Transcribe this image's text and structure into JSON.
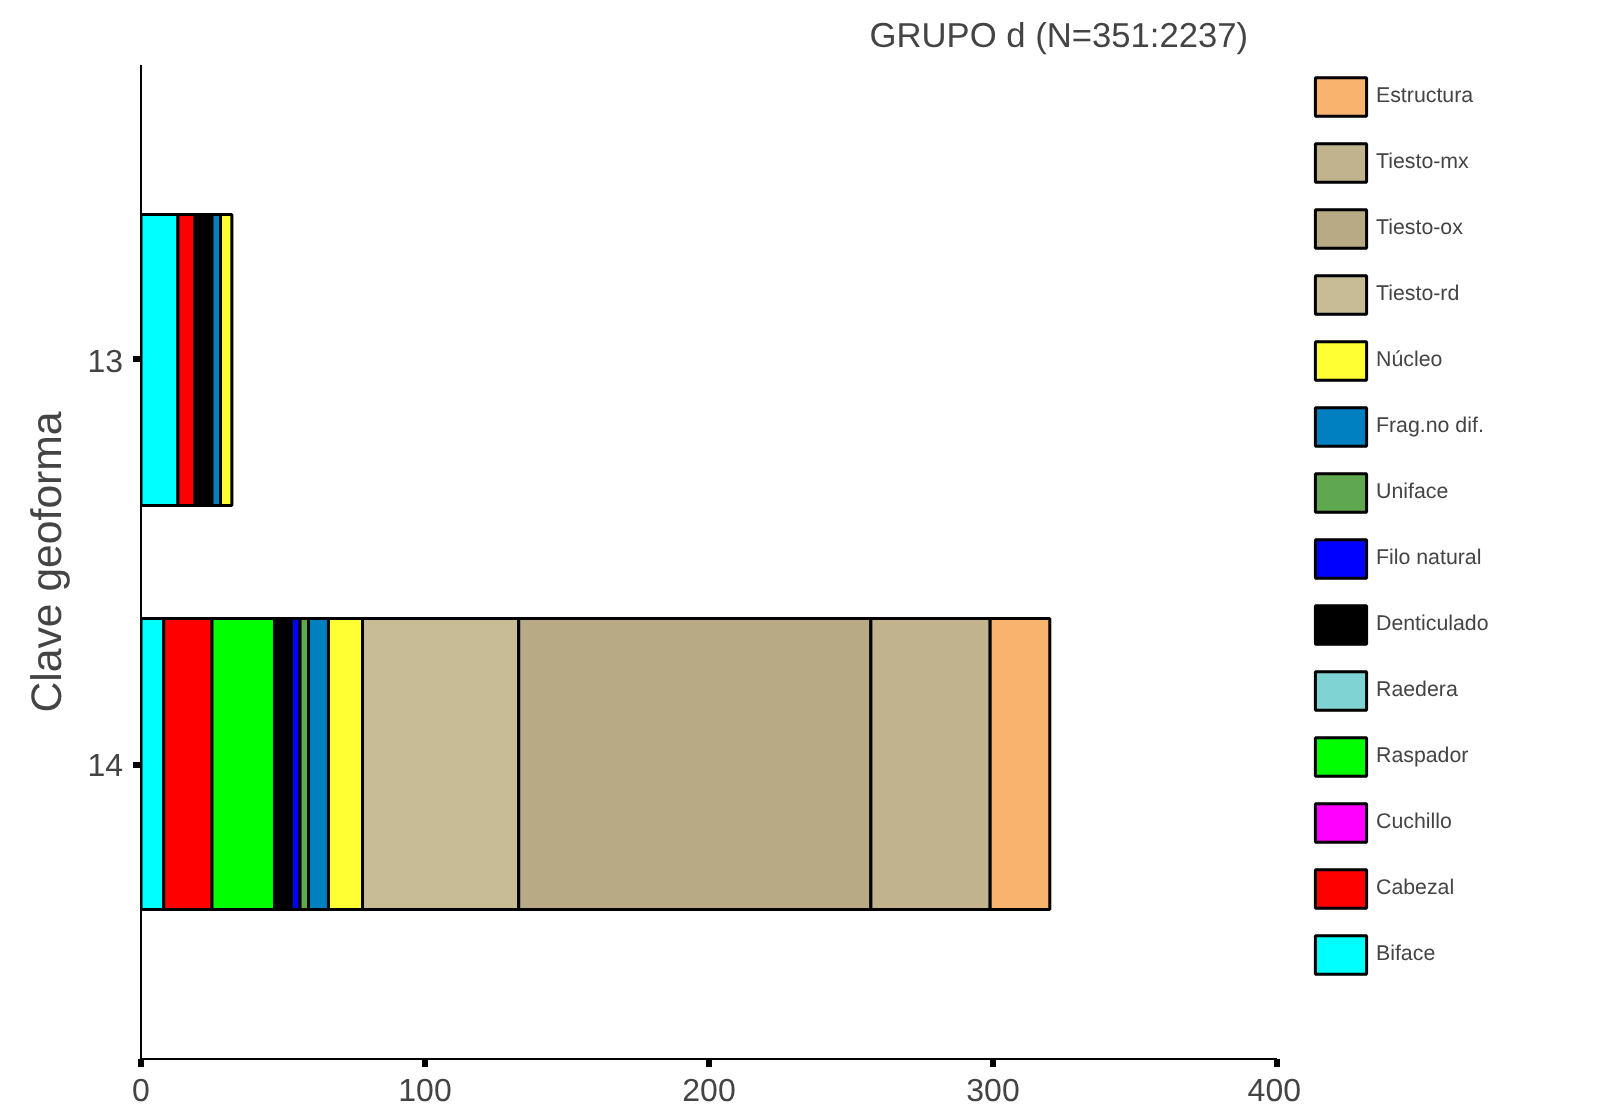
{
  "chart_data": {
    "type": "bar",
    "orientation": "horizontal",
    "stacked": true,
    "title": "GRUPO d    (N=351:2237)",
    "ylabel": "Clave geoforma",
    "categories": [
      "13",
      "14"
    ],
    "series": [
      {
        "name": "Biface",
        "color": "#00ffff",
        "values": [
          13,
          8
        ]
      },
      {
        "name": "Cabezal",
        "color": "#ff0000",
        "values": [
          6,
          17
        ]
      },
      {
        "name": "Cuchillo",
        "color": "#ff00ff",
        "values": [
          0,
          0
        ]
      },
      {
        "name": "Raspador",
        "color": "#00ff00",
        "values": [
          0,
          22
        ]
      },
      {
        "name": "Raedera",
        "color": "#7fd3d3",
        "values": [
          0,
          0
        ]
      },
      {
        "name": "Denticulado",
        "color": "#000000",
        "values": [
          5,
          6
        ]
      },
      {
        "name": "Filo natural",
        "color": "#0000ff",
        "values": [
          0,
          3
        ]
      },
      {
        "name": "Uniface",
        "color": "#5fa84f",
        "values": [
          1,
          3
        ]
      },
      {
        "name": "Frag.no dif.",
        "color": "#0080c0",
        "values": [
          3,
          7
        ]
      },
      {
        "name": "Núcleo",
        "color": "#ffff33",
        "values": [
          4,
          12
        ]
      },
      {
        "name": "Tiesto-rd",
        "color": "#c8bc96",
        "values": [
          0,
          55
        ]
      },
      {
        "name": "Tiesto-ox",
        "color": "#b8aa84",
        "values": [
          0,
          124
        ]
      },
      {
        "name": "Tiesto-mx",
        "color": "#c0b38e",
        "values": [
          0,
          42
        ]
      },
      {
        "name": "Estructura",
        "color": "#f8b46e",
        "values": [
          0,
          21
        ]
      }
    ],
    "xlim": [
      0,
      400
    ],
    "xticks": [
      0,
      100,
      200,
      300,
      400
    ],
    "grid": false,
    "legend": "right"
  }
}
